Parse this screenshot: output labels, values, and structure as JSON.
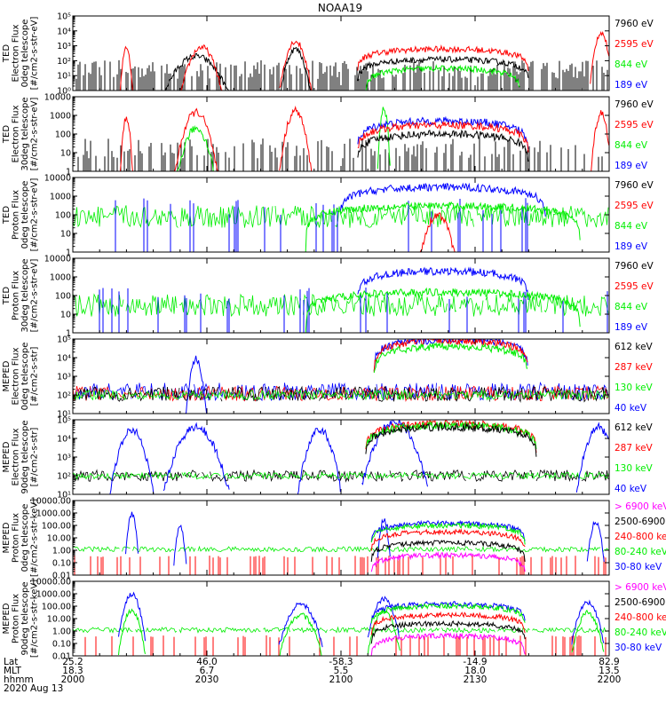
{
  "title": "NOAA19",
  "colors": {
    "black": "#000000",
    "red": "#ff0000",
    "green": "#00ee00",
    "blue": "#0000ff",
    "magenta": "#ff00ff"
  },
  "chart_data": [
    {
      "type": "line",
      "id": "p1",
      "log": true,
      "ylim": [
        1,
        100000
      ],
      "ylabel": [
        "TED",
        "Electron Flux",
        "0deg telescope",
        "[#/cm2-s-str-eV]"
      ],
      "ticks": [
        {
          "label": "10⁰",
          "v": 1
        },
        {
          "label": "10¹",
          "v": 10
        },
        {
          "label": "10²",
          "v": 100
        },
        {
          "label": "10³",
          "v": 1000
        },
        {
          "label": "10⁴",
          "v": 10000
        },
        {
          "label": "10⁵",
          "v": 100000
        }
      ],
      "legend": [
        {
          "text": "7960 eV",
          "color": "black"
        },
        {
          "text": "2595 eV",
          "color": "red"
        },
        {
          "text": "844 eV",
          "color": "green"
        },
        {
          "text": "189 eV",
          "color": "blue"
        }
      ],
      "features": [
        {
          "series": "black",
          "kind": "spikes",
          "dens": 0.6,
          "base": 6,
          "amp": 18
        },
        {
          "series": "black",
          "kind": "hump",
          "c": 0.23,
          "w": 0.035,
          "peak": 200
        },
        {
          "series": "red",
          "kind": "hump",
          "c": 0.24,
          "w": 0.02,
          "peak": 800
        },
        {
          "series": "red",
          "kind": "hump",
          "c": 0.1,
          "w": 0.006,
          "peak": 900
        },
        {
          "series": "red",
          "kind": "hump",
          "c": 0.415,
          "w": 0.015,
          "peak": 2000
        },
        {
          "series": "black",
          "kind": "hump",
          "c": 0.415,
          "w": 0.015,
          "peak": 600
        },
        {
          "series": "red",
          "kind": "dome",
          "c": 0.69,
          "w": 0.1,
          "peak": 600
        },
        {
          "series": "black",
          "kind": "dome",
          "c": 0.69,
          "w": 0.1,
          "peak": 120
        },
        {
          "series": "green",
          "kind": "dome",
          "c": 0.69,
          "w": 0.09,
          "peak": 30
        },
        {
          "series": "red",
          "kind": "hump",
          "c": 0.985,
          "w": 0.01,
          "peak": 8000
        }
      ]
    },
    {
      "type": "line",
      "id": "p2",
      "log": true,
      "ylim": [
        1,
        10000
      ],
      "ylabel": [
        "TED",
        "Electron Flux",
        "30deg telescope",
        "[#/cm2-s-str-eV]"
      ],
      "ticks": [
        {
          "label": "1",
          "v": 1
        },
        {
          "label": "10",
          "v": 10
        },
        {
          "label": "100",
          "v": 100
        },
        {
          "label": "1000",
          "v": 1000
        },
        {
          "label": "10000",
          "v": 10000
        }
      ],
      "legend": [
        {
          "text": "7960 eV",
          "color": "black"
        },
        {
          "text": "2595 eV",
          "color": "red"
        },
        {
          "text": "844 eV",
          "color": "green"
        },
        {
          "text": "189 eV",
          "color": "blue"
        }
      ],
      "features": [
        {
          "series": "black",
          "kind": "spikes",
          "dens": 0.45,
          "base": 5,
          "amp": 12
        },
        {
          "series": "red",
          "kind": "hump",
          "c": 0.1,
          "w": 0.006,
          "peak": 800
        },
        {
          "series": "red",
          "kind": "hump",
          "c": 0.23,
          "w": 0.02,
          "peak": 1500
        },
        {
          "series": "green",
          "kind": "hump",
          "c": 0.23,
          "w": 0.02,
          "peak": 200
        },
        {
          "series": "red",
          "kind": "hump",
          "c": 0.415,
          "w": 0.015,
          "peak": 1800
        },
        {
          "series": "green",
          "kind": "hump",
          "c": 0.58,
          "w": 0.006,
          "peak": 2500
        },
        {
          "series": "blue",
          "kind": "dome",
          "c": 0.69,
          "w": 0.1,
          "peak": 500
        },
        {
          "series": "red",
          "kind": "dome",
          "c": 0.69,
          "w": 0.1,
          "peak": 300
        },
        {
          "series": "black",
          "kind": "dome",
          "c": 0.69,
          "w": 0.1,
          "peak": 100
        },
        {
          "series": "red",
          "kind": "hump",
          "c": 0.985,
          "w": 0.01,
          "peak": 1200
        }
      ]
    },
    {
      "type": "line",
      "id": "p3",
      "log": true,
      "ylim": [
        1,
        10000
      ],
      "ylabel": [
        "TED",
        "Proton Flux",
        "0deg telescope",
        "[#/cm2-s-str-eV]"
      ],
      "ticks": [
        {
          "label": "1",
          "v": 1
        },
        {
          "label": "10",
          "v": 10
        },
        {
          "label": "100",
          "v": 100
        },
        {
          "label": "1000",
          "v": 1000
        },
        {
          "label": "10000",
          "v": 10000
        }
      ],
      "legend": [
        {
          "text": "7960 eV",
          "color": "black"
        },
        {
          "text": "2595 eV",
          "color": "red"
        },
        {
          "text": "844 eV",
          "color": "green"
        },
        {
          "text": "189 eV",
          "color": "blue"
        }
      ],
      "features": [
        {
          "series": "green",
          "kind": "noise",
          "base": 80,
          "amp": 4
        },
        {
          "series": "blue",
          "kind": "spikes",
          "dens": 0.1,
          "base": 100,
          "amp": 8
        },
        {
          "series": "blue",
          "kind": "dome",
          "c": 0.69,
          "w": 0.12,
          "peak": 3000
        },
        {
          "series": "green",
          "kind": "dome",
          "c": 0.69,
          "w": 0.16,
          "peak": 300
        },
        {
          "series": "red",
          "kind": "hump",
          "c": 0.68,
          "w": 0.02,
          "peak": 100
        }
      ]
    },
    {
      "type": "line",
      "id": "p4",
      "log": true,
      "ylim": [
        1,
        10000
      ],
      "ylabel": [
        "TED",
        "Proton Flux",
        "30deg telescope",
        "[#/cm2-s-str-eV]"
      ],
      "ticks": [
        {
          "label": "1",
          "v": 1
        },
        {
          "label": "10",
          "v": 10
        },
        {
          "label": "100",
          "v": 100
        },
        {
          "label": "1000",
          "v": 1000
        },
        {
          "label": "10000",
          "v": 10000
        }
      ],
      "legend": [
        {
          "text": "7960 eV",
          "color": "black"
        },
        {
          "text": "2595 eV",
          "color": "red"
        },
        {
          "text": "844 eV",
          "color": "green"
        },
        {
          "text": "189 eV",
          "color": "blue"
        }
      ],
      "features": [
        {
          "series": "green",
          "kind": "noise",
          "base": 30,
          "amp": 4
        },
        {
          "series": "blue",
          "kind": "spikes",
          "dens": 0.08,
          "base": 50,
          "amp": 6
        },
        {
          "series": "blue",
          "kind": "dome",
          "c": 0.69,
          "w": 0.1,
          "peak": 2000
        },
        {
          "series": "green",
          "kind": "dome",
          "c": 0.69,
          "w": 0.16,
          "peak": 150
        }
      ]
    },
    {
      "type": "line",
      "id": "p5",
      "log": true,
      "ylim": [
        10,
        100000
      ],
      "ylabel": [
        "MEPED",
        "Electron Flux",
        "0deg telescope",
        "[#/cm2-s-str]"
      ],
      "ticks": [
        {
          "label": "10¹",
          "v": 10
        },
        {
          "label": "10²",
          "v": 100
        },
        {
          "label": "10³",
          "v": 1000
        },
        {
          "label": "10⁴",
          "v": 10000
        },
        {
          "label": "10⁵",
          "v": 100000
        }
      ],
      "legend": [
        {
          "text": "612 keV",
          "color": "black"
        },
        {
          "text": "287 keV",
          "color": "red"
        },
        {
          "text": "130 keV",
          "color": "green"
        },
        {
          "text": "40 keV",
          "color": "blue"
        }
      ],
      "features": [
        {
          "series": "blue",
          "kind": "noise",
          "base": 150,
          "amp": 3
        },
        {
          "series": "red",
          "kind": "noise",
          "base": 120,
          "amp": 2.5
        },
        {
          "series": "black",
          "kind": "noise",
          "base": 110,
          "amp": 2.5
        },
        {
          "series": "green",
          "kind": "noise",
          "base": 100,
          "amp": 1.8
        },
        {
          "series": "blue",
          "kind": "hump",
          "c": 0.23,
          "w": 0.01,
          "peak": 8000
        },
        {
          "series": "blue",
          "kind": "dome",
          "c": 0.705,
          "w": 0.09,
          "peak": 90000
        },
        {
          "series": "red",
          "kind": "dome",
          "c": 0.705,
          "w": 0.09,
          "peak": 80000
        },
        {
          "series": "green",
          "kind": "dome",
          "c": 0.705,
          "w": 0.09,
          "peak": 40000
        }
      ]
    },
    {
      "type": "line",
      "id": "p6",
      "log": true,
      "ylim": [
        10,
        100000
      ],
      "ylabel": [
        "MEPED",
        "Electron Flux",
        "90deg telescope",
        "[#/cm2-s-str]"
      ],
      "ticks": [
        {
          "label": "10¹",
          "v": 10
        },
        {
          "label": "10²",
          "v": 100
        },
        {
          "label": "10³",
          "v": 1000
        },
        {
          "label": "10⁴",
          "v": 10000
        },
        {
          "label": "10⁵",
          "v": 100000
        }
      ],
      "legend": [
        {
          "text": "612 keV",
          "color": "black"
        },
        {
          "text": "287 keV",
          "color": "red"
        },
        {
          "text": "130 keV",
          "color": "green"
        },
        {
          "text": "40 keV",
          "color": "blue"
        }
      ],
      "features": [
        {
          "series": "black",
          "kind": "noise",
          "base": 100,
          "amp": 2
        },
        {
          "series": "green",
          "kind": "noise",
          "base": 100,
          "amp": 1.5
        },
        {
          "series": "blue",
          "kind": "hump",
          "c": 0.23,
          "w": 0.03,
          "peak": 40000
        },
        {
          "series": "blue",
          "kind": "hump",
          "c": 0.11,
          "w": 0.02,
          "peak": 30000
        },
        {
          "series": "blue",
          "kind": "hump",
          "c": 0.46,
          "w": 0.02,
          "peak": 30000
        },
        {
          "series": "blue",
          "kind": "hump",
          "c": 0.6,
          "w": 0.03,
          "peak": 80000
        },
        {
          "series": "red",
          "kind": "dome",
          "c": 0.705,
          "w": 0.1,
          "peak": 60000
        },
        {
          "series": "green",
          "kind": "dome",
          "c": 0.705,
          "w": 0.1,
          "peak": 50000
        },
        {
          "series": "black",
          "kind": "dome",
          "c": 0.705,
          "w": 0.1,
          "peak": 40000
        },
        {
          "series": "blue",
          "kind": "hump",
          "c": 0.98,
          "w": 0.02,
          "peak": 40000
        }
      ]
    },
    {
      "type": "line",
      "id": "p7",
      "log": true,
      "ylim": [
        0.01,
        10000
      ],
      "ylabel": [
        "MEPED",
        "Proton Flux",
        "0deg telescope",
        "[#/cm2-s-str-keV]"
      ],
      "ticks": [
        {
          "label": "0.01",
          "v": 0.01
        },
        {
          "label": "0.10",
          "v": 0.1
        },
        {
          "label": "1.00",
          "v": 1
        },
        {
          "label": "10.00",
          "v": 10
        },
        {
          "label": "100.00",
          "v": 100
        },
        {
          "label": "1000.00",
          "v": 1000
        },
        {
          "label": "10000.00",
          "v": 10000
        }
      ],
      "legend": [
        {
          "text": "> 6900 keV",
          "color": "magenta"
        },
        {
          "text": "2500-6900",
          "color": "black"
        },
        {
          "text": "240-800 ke",
          "color": "red"
        },
        {
          "text": "80-240 keV",
          "color": "green"
        },
        {
          "text": "30-80 keV",
          "color": "blue"
        }
      ],
      "features": [
        {
          "series": "green",
          "kind": "noise",
          "base": 1.2,
          "amp": 1.6
        },
        {
          "series": "red",
          "kind": "spikes",
          "dens": 0.2,
          "base": 0.25,
          "amp": 1.5
        },
        {
          "series": "blue",
          "kind": "hump",
          "c": 0.11,
          "w": 0.006,
          "peak": 800
        },
        {
          "series": "blue",
          "kind": "hump",
          "c": 0.2,
          "w": 0.006,
          "peak": 80
        },
        {
          "series": "blue",
          "kind": "hump",
          "c": 0.58,
          "w": 0.006,
          "peak": 300
        },
        {
          "series": "blue",
          "kind": "dome",
          "c": 0.7,
          "w": 0.09,
          "peak": 150
        },
        {
          "series": "green",
          "kind": "dome",
          "c": 0.7,
          "w": 0.09,
          "peak": 100
        },
        {
          "series": "red",
          "kind": "dome",
          "c": 0.7,
          "w": 0.09,
          "peak": 30
        },
        {
          "series": "black",
          "kind": "dome",
          "c": 0.7,
          "w": 0.09,
          "peak": 4
        },
        {
          "series": "magenta",
          "kind": "dome",
          "c": 0.7,
          "w": 0.09,
          "peak": 0.4
        },
        {
          "series": "blue",
          "kind": "hump",
          "c": 0.975,
          "w": 0.008,
          "peak": 200
        }
      ]
    },
    {
      "type": "line",
      "id": "p8",
      "log": true,
      "ylim": [
        0.01,
        10000
      ],
      "ylabel": [
        "MEPED",
        "Proton Flux",
        "90deg telescope",
        "[#/cm2-s-str-keV]"
      ],
      "ticks": [
        {
          "label": "0.01",
          "v": 0.01
        },
        {
          "label": "0.10",
          "v": 0.1
        },
        {
          "label": "1.00",
          "v": 1
        },
        {
          "label": "10.00",
          "v": 10
        },
        {
          "label": "100.00",
          "v": 100
        },
        {
          "label": "1000.00",
          "v": 1000
        },
        {
          "label": "10000.00",
          "v": 10000
        }
      ],
      "legend": [
        {
          "text": "> 6900 keV",
          "color": "magenta"
        },
        {
          "text": "2500-6900",
          "color": "black"
        },
        {
          "text": "240-800 ke",
          "color": "red"
        },
        {
          "text": "80-240 keV",
          "color": "green"
        },
        {
          "text": "30-80 keV",
          "color": "blue"
        }
      ],
      "features": [
        {
          "series": "green",
          "kind": "noise",
          "base": 1.2,
          "amp": 1.6
        },
        {
          "series": "red",
          "kind": "spikes",
          "dens": 0.15,
          "base": 0.3,
          "amp": 1.5
        },
        {
          "series": "blue",
          "kind": "hump",
          "c": 0.11,
          "w": 0.012,
          "peak": 900
        },
        {
          "series": "green",
          "kind": "hump",
          "c": 0.11,
          "w": 0.012,
          "peak": 50
        },
        {
          "series": "blue",
          "kind": "hump",
          "c": 0.425,
          "w": 0.02,
          "peak": 150
        },
        {
          "series": "green",
          "kind": "hump",
          "c": 0.425,
          "w": 0.02,
          "peak": 20
        },
        {
          "series": "blue",
          "kind": "hump",
          "c": 0.58,
          "w": 0.015,
          "peak": 400
        },
        {
          "series": "green",
          "kind": "hump",
          "c": 0.58,
          "w": 0.015,
          "peak": 40
        },
        {
          "series": "blue",
          "kind": "dome",
          "c": 0.7,
          "w": 0.09,
          "peak": 150
        },
        {
          "series": "green",
          "kind": "dome",
          "c": 0.7,
          "w": 0.09,
          "peak": 100
        },
        {
          "series": "red",
          "kind": "dome",
          "c": 0.7,
          "w": 0.09,
          "peak": 20
        },
        {
          "series": "black",
          "kind": "dome",
          "c": 0.7,
          "w": 0.09,
          "peak": 4
        },
        {
          "series": "magenta",
          "kind": "dome",
          "c": 0.7,
          "w": 0.09,
          "peak": 0.4
        },
        {
          "series": "blue",
          "kind": "hump",
          "c": 0.96,
          "w": 0.015,
          "peak": 200
        },
        {
          "series": "green",
          "kind": "hump",
          "c": 0.96,
          "w": 0.015,
          "peak": 30
        }
      ]
    }
  ],
  "xaxis": {
    "row_labels": [
      "Lat",
      "MLT",
      "hhmm"
    ],
    "date": "2020 Aug 13",
    "ticks": [
      {
        "pos": 0.0,
        "lat": "25.2",
        "mlt": "18.3",
        "hhmm": "2000"
      },
      {
        "pos": 0.25,
        "lat": "46.0",
        "mlt": "6.7",
        "hhmm": "2030"
      },
      {
        "pos": 0.5,
        "lat": "-58.3",
        "mlt": "5.5",
        "hhmm": "2100"
      },
      {
        "pos": 0.75,
        "lat": "-14.9",
        "mlt": "18.0",
        "hhmm": "2130"
      },
      {
        "pos": 1.0,
        "lat": "82.9",
        "mlt": "13.5",
        "hhmm": "2200"
      }
    ]
  }
}
